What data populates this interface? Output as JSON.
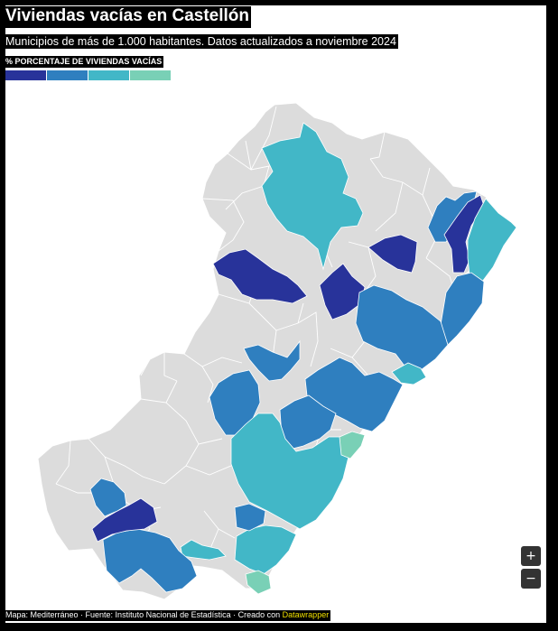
{
  "title": "Viviendas vacías en Castellón",
  "subtitle": "Municipios de más de 1.000 habitantes. Datos actualizados a noviembre 2024",
  "legend": {
    "title": "% PORCENTAJE DE VIVIENDAS VACÍAS",
    "colors": [
      "#28339a",
      "#2f7fbf",
      "#42b7c7",
      "#79d0b6"
    ]
  },
  "colors": {
    "no_data": "#dcdcdc",
    "border": "#ffffff"
  },
  "controls": {
    "zoom_in": "+",
    "zoom_out": "−"
  },
  "footer": {
    "text": "Mapa: Mediterráneo · Fuente: Instituto Nacional de Estadística · Creado con ",
    "link": "Datawrapper"
  }
}
